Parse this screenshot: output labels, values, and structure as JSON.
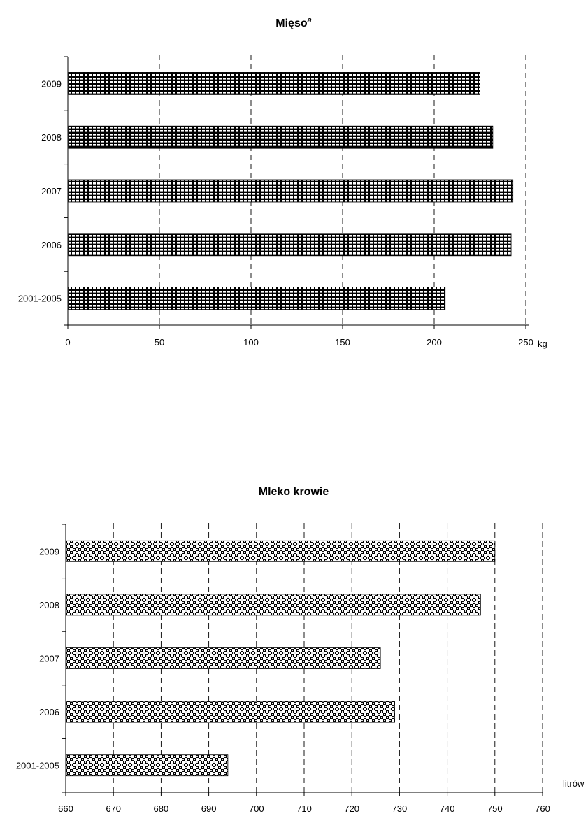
{
  "chart_data": [
    {
      "type": "bar",
      "orientation": "horizontal",
      "title": "Mięso",
      "title_superscript": "a",
      "categories": [
        "2001-2005",
        "2006",
        "2007",
        "2008",
        "2009"
      ],
      "values": [
        206,
        242,
        243,
        232,
        225
      ],
      "xlim": [
        0,
        250
      ],
      "xticks": [
        "0",
        "50",
        "100",
        "150",
        "200",
        "250"
      ],
      "xunit": "kg",
      "grid": "vertical dashed",
      "legend": "none",
      "pattern": "grid",
      "colors": {
        "bar": "#000000",
        "pattern_bg": "#ffffff"
      }
    },
    {
      "type": "bar",
      "orientation": "horizontal",
      "title": "Mleko krowie",
      "categories": [
        "2001-2005",
        "2006",
        "2007",
        "2008",
        "2009"
      ],
      "values": [
        694,
        729,
        726,
        747,
        750
      ],
      "xlim": [
        660,
        760
      ],
      "xticks": [
        "660",
        "670",
        "680",
        "690",
        "700",
        "710",
        "720",
        "730",
        "740",
        "750",
        "760"
      ],
      "xunit": "litrów",
      "grid": "vertical dashed",
      "legend": "none",
      "pattern": "checker",
      "colors": {
        "bar": "#000000",
        "pattern_bg": "#ffffff"
      }
    }
  ]
}
